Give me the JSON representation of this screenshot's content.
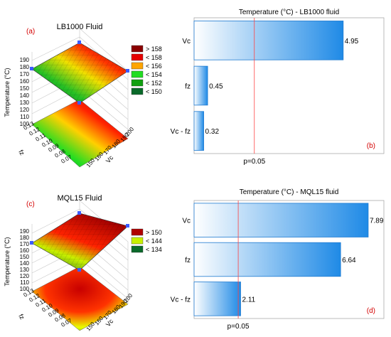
{
  "chart_data": [
    {
      "type": "surface",
      "panel": "(a)",
      "title": "LB1000 Fluid",
      "zlabel": "Temperature (°C)",
      "xlabel": "fz",
      "ylabel": "Vc",
      "x_ticks": [
        "0.13",
        "0.12",
        "0.11",
        "0.10",
        "0.09",
        "0.08",
        "0.07"
      ],
      "y_ticks": [
        "150",
        "160",
        "170",
        "180",
        "190",
        "200"
      ],
      "z_ticks": [
        "190",
        "180",
        "170",
        "160",
        "150",
        "140",
        "130",
        "120",
        "110",
        "100"
      ],
      "legend": {
        "labels": [
          "> 158",
          "< 158",
          "< 156",
          "< 154",
          "< 152",
          "< 150"
        ],
        "colors": [
          "#8b0000",
          "#e60000",
          "#ffa500",
          "#22dd22",
          "#10a010",
          "#0a6a2a"
        ]
      }
    },
    {
      "type": "bar",
      "panel": "(b)",
      "title": "Temperature (°C) - LB1000 fluid",
      "categories": [
        "Vc",
        "fz",
        "Vc - fz"
      ],
      "values": [
        4.95,
        0.45,
        0.32
      ],
      "value_labels": [
        "4.95",
        "0.45",
        "0.32"
      ],
      "threshold": 2.0,
      "threshold_label": "p=0.05",
      "xlim": [
        0,
        6.3
      ]
    },
    {
      "type": "surface",
      "panel": "(c)",
      "title": "MQL15 Fluid",
      "zlabel": "Temperature (°C)",
      "xlabel": "fz",
      "ylabel": "Vc",
      "x_ticks": [
        "0.13",
        "0.12",
        "0.11",
        "0.10",
        "0.09",
        "0.08",
        "0.07"
      ],
      "y_ticks": [
        "150",
        "160",
        "170",
        "180",
        "190",
        "200"
      ],
      "z_ticks": [
        "190",
        "180",
        "170",
        "160",
        "150",
        "140",
        "130",
        "120",
        "110",
        "100"
      ],
      "legend": {
        "labels": [
          "> 150",
          "< 144",
          "< 134"
        ],
        "colors": [
          "#b00000",
          "#c8f000",
          "#0a6a2a"
        ]
      }
    },
    {
      "type": "bar",
      "panel": "(d)",
      "title": "Temperature (°C) - MQL15 fluid",
      "categories": [
        "Vc",
        "fz",
        "Vc - fz"
      ],
      "values": [
        7.89,
        6.64,
        2.11
      ],
      "value_labels": [
        "7.89",
        "6.64",
        "2.11"
      ],
      "threshold": 2.0,
      "threshold_label": "p=0.05",
      "xlim": [
        0,
        8.6
      ]
    }
  ]
}
